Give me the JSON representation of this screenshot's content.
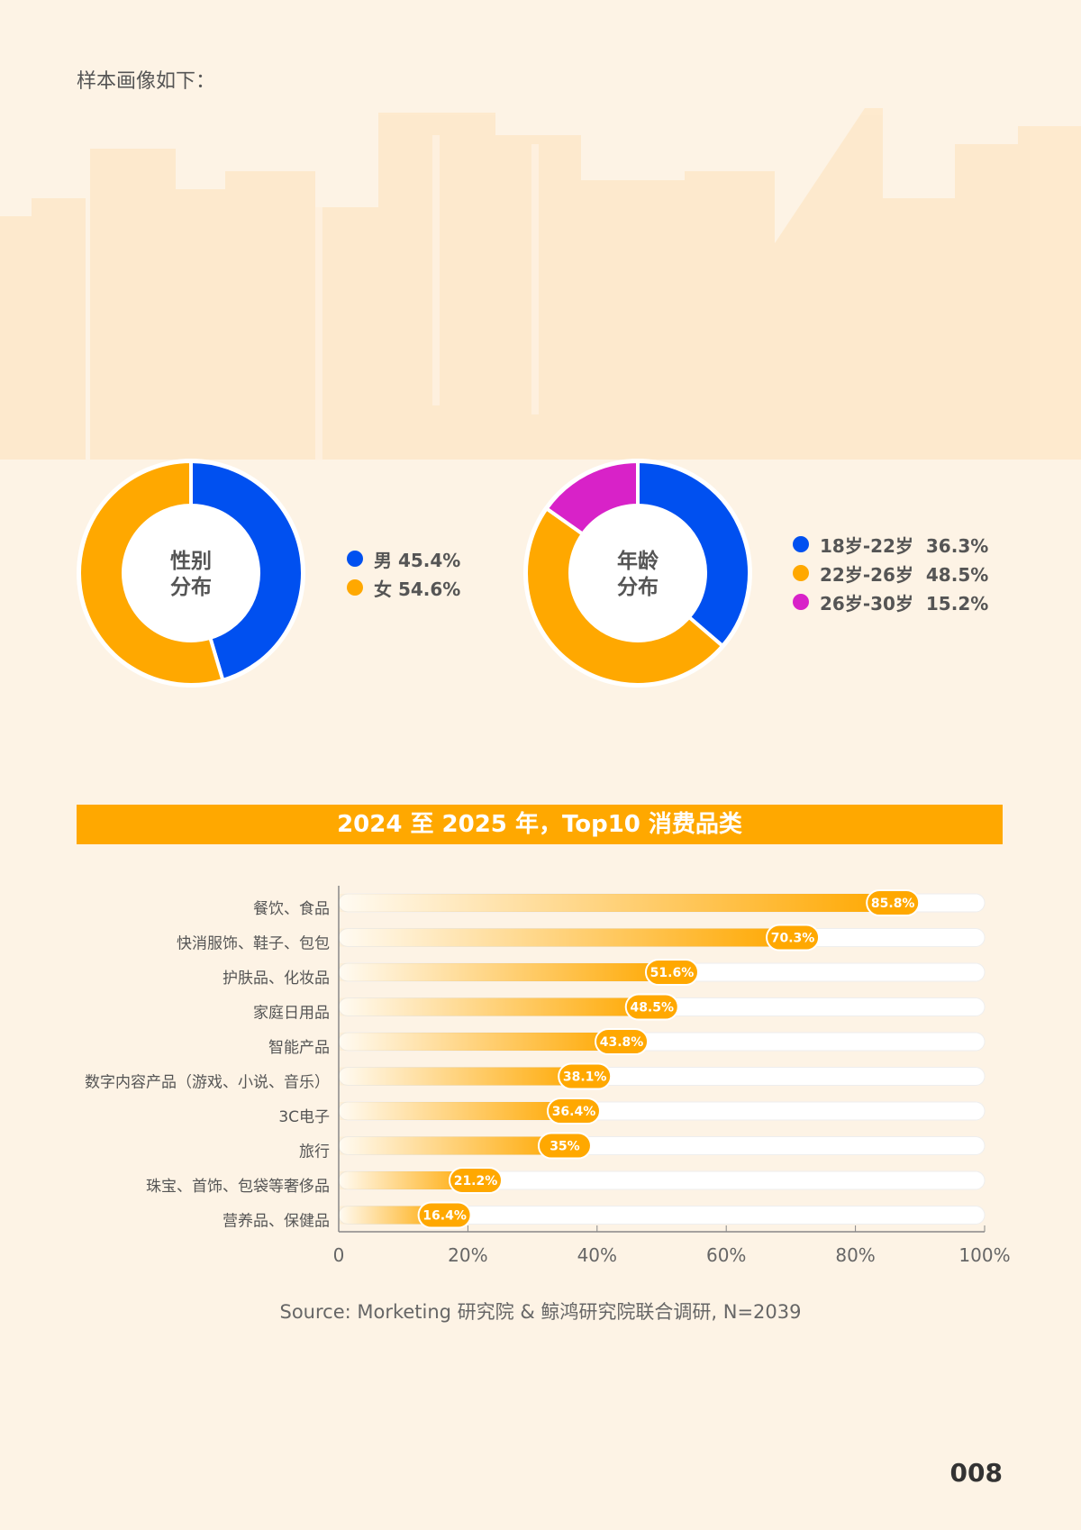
{
  "intro": "样本画像如下：",
  "colors": {
    "blue": "#0050f0",
    "orange": "#ffa800",
    "magenta": "#d822c8",
    "background": "#fdf3e5"
  },
  "chart_data": [
    {
      "type": "pie",
      "title": "性别分布",
      "center_label": [
        "性别",
        "分布"
      ],
      "slices": [
        {
          "name": "男",
          "value": 45.4,
          "label": "男 45.4%",
          "color": "#0050f0"
        },
        {
          "name": "女",
          "value": 54.6,
          "label": "女 54.6%",
          "color": "#ffa800"
        }
      ]
    },
    {
      "type": "pie",
      "title": "年龄分布",
      "center_label": [
        "年龄",
        "分布"
      ],
      "slices": [
        {
          "name": "18岁-22岁",
          "value": 36.3,
          "label": "18岁-22岁  36.3%",
          "color": "#0050f0"
        },
        {
          "name": "22岁-26岁",
          "value": 48.5,
          "label": "22岁-26岁  48.5%",
          "color": "#ffa800"
        },
        {
          "name": "26岁-30岁",
          "value": 15.2,
          "label": "26岁-30岁  15.2%",
          "color": "#d822c8"
        }
      ]
    },
    {
      "type": "bar",
      "orientation": "horizontal",
      "title": "2024 至 2025 年，Top10 消费品类",
      "categories": [
        "餐饮、食品",
        "快消服饰、鞋子、包包",
        "护肤品、化妆品",
        "家庭日用品",
        "智能产品",
        "数字内容产品（游戏、小说、音乐）",
        "3C电子",
        "旅行",
        "珠宝、首饰、包袋等奢侈品",
        "营养品、保健品"
      ],
      "values": [
        85.8,
        70.3,
        51.6,
        48.5,
        43.8,
        38.1,
        36.4,
        35,
        21.2,
        16.4
      ],
      "value_labels": [
        "85.8%",
        "70.3%",
        "51.6%",
        "48.5%",
        "43.8%",
        "38.1%",
        "36.4%",
        "35%",
        "21.2%",
        "16.4%"
      ],
      "xlim": [
        0,
        100
      ],
      "xticks": [
        "0",
        "20%",
        "40%",
        "60%",
        "80%",
        "100%"
      ]
    }
  ],
  "source": "Source: Morketing 研究院 & 鲸鸿研究院联合调研, N=2039",
  "page_number": "008"
}
